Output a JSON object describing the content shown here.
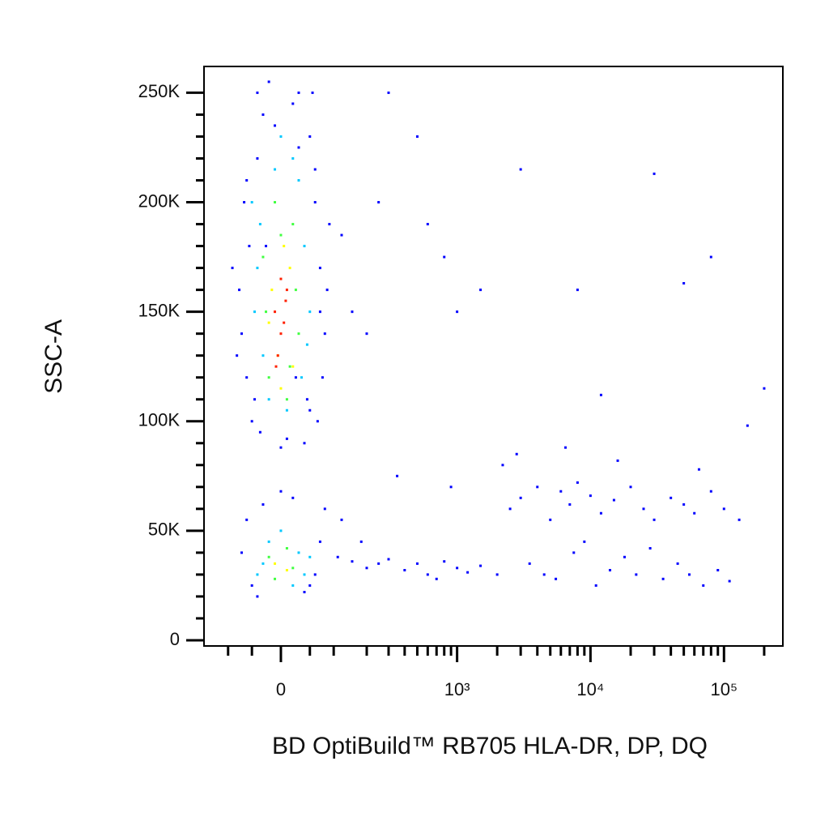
{
  "chart_data": {
    "type": "scatter",
    "xlabel": "BD OptiBuild™ RB705 HLA-DR, DP, DQ",
    "ylabel": "SSC-A",
    "xscale": {
      "type": "arcsinh",
      "cofactor": 96
    },
    "xlim": [
      -168,
      276000
    ],
    "ylim": [
      -2600,
      262000
    ],
    "xticks": [
      0,
      {
        "value": 1000,
        "label": "10³"
      },
      {
        "value": 10000,
        "label": "10⁴"
      },
      {
        "value": 100000,
        "label": "10⁵"
      }
    ],
    "xminor_ticks": [
      -100,
      -50,
      50,
      100,
      200,
      300,
      400,
      500,
      600,
      700,
      800,
      900,
      2000,
      3000,
      4000,
      5000,
      6000,
      7000,
      8000,
      9000,
      20000,
      30000,
      40000,
      50000,
      60000,
      70000,
      80000,
      90000,
      200000
    ],
    "yticks": [
      0,
      {
        "value": 50000,
        "label": "50K"
      },
      {
        "value": 100000,
        "label": "100K"
      },
      {
        "value": 150000,
        "label": "150K"
      },
      {
        "value": 200000,
        "label": "200K"
      },
      {
        "value": 250000,
        "label": "250K"
      }
    ],
    "yminor_ticks": [
      10000,
      20000,
      30000,
      40000,
      60000,
      70000,
      80000,
      90000,
      110000,
      120000,
      130000,
      140000,
      160000,
      170000,
      180000,
      190000,
      210000,
      220000,
      230000,
      240000
    ],
    "point_groups": [
      {
        "color": "#0000ff",
        "x": [
          -70,
          -55,
          -60,
          -40,
          -75,
          -30,
          50,
          60,
          70,
          80,
          45,
          65,
          -50,
          -65,
          30,
          55,
          75,
          -45,
          85,
          40,
          -35,
          20,
          -20,
          10,
          0,
          -10,
          60,
          90,
          -80,
          70,
          120,
          150,
          200,
          -90,
          -60,
          50,
          30,
          -40,
          25,
          -25,
          -70,
          -50,
          -40,
          50,
          70,
          -60,
          80,
          40,
          -30,
          20,
          0,
          60,
          110,
          150,
          200,
          250,
          300,
          400,
          500,
          600,
          700,
          800,
          1000,
          1200,
          1500,
          2000,
          120,
          180,
          350,
          900,
          2500,
          3000,
          4000,
          5000,
          6000,
          7000,
          8000,
          10000,
          12000,
          15000,
          20000,
          25000,
          30000,
          40000,
          50000,
          60000,
          80000,
          100000,
          130000,
          3500,
          4500,
          5500,
          7500,
          9000,
          11000,
          14000,
          18000,
          22000,
          28000,
          35000,
          45000,
          55000,
          70000,
          90000,
          110000,
          2200,
          2800,
          6500,
          16000,
          65000,
          300,
          500,
          800,
          1500,
          3000,
          8000,
          30000,
          50000,
          80000,
          200000,
          600,
          1000,
          150000,
          12000,
          250
        ],
        "y": [
          140000,
          180000,
          120000,
          220000,
          160000,
          240000,
          230000,
          200000,
          170000,
          140000,
          110000,
          100000,
          100000,
          200000,
          250000,
          250000,
          120000,
          110000,
          160000,
          90000,
          95000,
          245000,
          255000,
          92000,
          88000,
          235000,
          215000,
          190000,
          130000,
          150000,
          185000,
          150000,
          140000,
          170000,
          210000,
          105000,
          225000,
          250000,
          120000,
          180000,
          40000,
          25000,
          20000,
          25000,
          45000,
          55000,
          60000,
          22000,
          62000,
          65000,
          68000,
          30000,
          38000,
          36000,
          33000,
          35000,
          37000,
          32000,
          35000,
          30000,
          28000,
          36000,
          33000,
          31000,
          34000,
          30000,
          55000,
          45000,
          75000,
          70000,
          60000,
          65000,
          70000,
          55000,
          68000,
          62000,
          72000,
          66000,
          58000,
          64000,
          70000,
          60000,
          55000,
          65000,
          62000,
          58000,
          68000,
          60000,
          55000,
          35000,
          30000,
          28000,
          40000,
          45000,
          25000,
          32000,
          38000,
          30000,
          42000,
          28000,
          35000,
          30000,
          25000,
          32000,
          27000,
          80000,
          85000,
          88000,
          82000,
          78000,
          250000,
          230000,
          175000,
          160000,
          215000,
          160000,
          213000,
          163000,
          175000,
          115000,
          190000,
          150000,
          98000,
          112000,
          200000
        ]
      },
      {
        "color": "#00c8ff",
        "x": [
          -50,
          -40,
          -30,
          -20,
          40,
          50,
          30,
          -45,
          35,
          20,
          -35,
          45,
          0,
          10,
          -10,
          -40,
          -20,
          30,
          40,
          0,
          20,
          -30,
          50
        ],
        "y": [
          200000,
          170000,
          130000,
          110000,
          180000,
          150000,
          210000,
          150000,
          120000,
          220000,
          190000,
          135000,
          230000,
          105000,
          215000,
          30000,
          45000,
          40000,
          30000,
          50000,
          25000,
          35000,
          38000
        ]
      },
      {
        "color": "#40ff40",
        "x": [
          -30,
          -20,
          -10,
          20,
          30,
          10,
          -25,
          25,
          0,
          15,
          -20,
          -10,
          10,
          20
        ],
        "y": [
          175000,
          120000,
          200000,
          190000,
          140000,
          110000,
          150000,
          160000,
          185000,
          125000,
          38000,
          28000,
          42000,
          33000
        ]
      },
      {
        "color": "#ffff00",
        "x": [
          -15,
          15,
          -5,
          5,
          -20,
          20,
          0,
          -10,
          10
        ],
        "y": [
          160000,
          170000,
          130000,
          180000,
          145000,
          125000,
          115000,
          35000,
          32000
        ]
      },
      {
        "color": "#ff2000",
        "x": [
          -10,
          0,
          10,
          -5,
          5,
          0,
          -8,
          8
        ],
        "y": [
          150000,
          140000,
          160000,
          130000,
          145000,
          165000,
          125000,
          155000
        ]
      }
    ]
  }
}
